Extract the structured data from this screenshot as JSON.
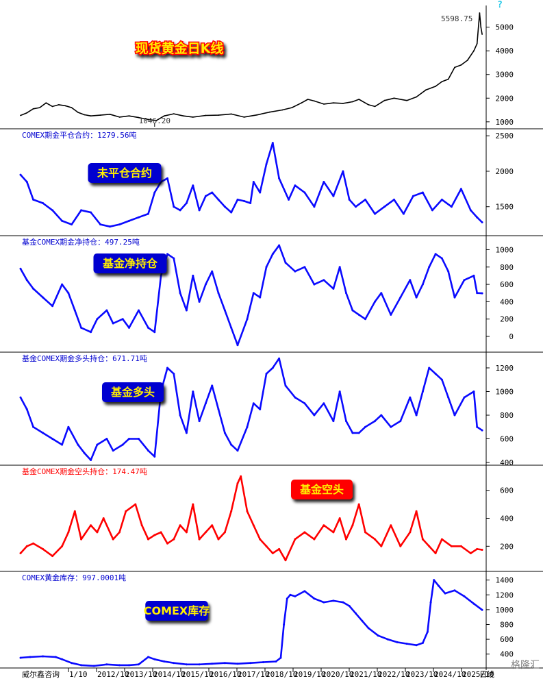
{
  "colors": {
    "black": "#000000",
    "blue": "#0a0aff",
    "red": "#ff0000",
    "yellow": "#ffee00",
    "label_red": "#ff0000",
    "label_blue": "#0000d0",
    "cyan": "#22c8e8"
  },
  "top_right_mark": "?",
  "footer": {
    "source": "威尔鑫咨询",
    "ticks": [
      "1/10",
      "2012/10",
      "2013/10",
      "2014/10",
      "2015/10",
      "2016/10",
      "2017/10",
      "2018/10",
      "2019/10",
      "2020/10",
      "2021/10",
      "2022/10",
      "2023/10",
      "2024/10",
      "2025/10"
    ],
    "period": "日线",
    "watermark": "格隆汇"
  },
  "chart_data": [
    {
      "id": "gold",
      "type": "line",
      "color": "black",
      "header": "",
      "big_label": "现货黄金日K线",
      "big_label_style": "red-on-yellow",
      "ylim": [
        850,
        5800
      ],
      "yticks": [
        1000,
        2000,
        3000,
        4000,
        5000
      ],
      "annotations": [
        {
          "text": "5598.75",
          "x": 2026.08,
          "y": 5598.75
        },
        {
          "text": "1046.20",
          "x": 2015.9,
          "y": 1046.2
        }
      ],
      "x": [
        2011.7,
        2011.9,
        2012.1,
        2012.3,
        2012.5,
        2012.7,
        2012.9,
        2013.1,
        2013.3,
        2013.5,
        2013.7,
        2013.9,
        2014.2,
        2014.5,
        2014.8,
        2015.1,
        2015.4,
        2015.7,
        2015.95,
        2016.2,
        2016.5,
        2016.8,
        2017.1,
        2017.5,
        2017.9,
        2018.3,
        2018.7,
        2019.1,
        2019.5,
        2019.9,
        2020.2,
        2020.5,
        2020.7,
        2020.9,
        2021.2,
        2021.5,
        2021.8,
        2022.1,
        2022.3,
        2022.6,
        2022.8,
        2023.1,
        2023.4,
        2023.8,
        2024.1,
        2024.4,
        2024.7,
        2024.9,
        2025.1,
        2025.3,
        2025.5,
        2025.7,
        2025.9,
        2026.0,
        2026.08,
        2026.12,
        2026.16
      ],
      "y": [
        1270,
        1380,
        1550,
        1600,
        1800,
        1650,
        1720,
        1680,
        1600,
        1400,
        1300,
        1250,
        1280,
        1320,
        1200,
        1250,
        1180,
        1100,
        1050,
        1250,
        1340,
        1250,
        1200,
        1270,
        1280,
        1330,
        1200,
        1290,
        1410,
        1500,
        1600,
        1800,
        1950,
        1880,
        1750,
        1800,
        1780,
        1850,
        1950,
        1720,
        1650,
        1900,
        2000,
        1900,
        2050,
        2350,
        2500,
        2700,
        2800,
        3300,
        3400,
        3600,
        4000,
        4300,
        5598.75,
        5000,
        4700
      ]
    },
    {
      "id": "open-interest",
      "type": "line",
      "color": "blue",
      "header": "COMEX期金平仓合约：1279.56吨",
      "header_color": "label_blue",
      "big_label": "未平仓合约",
      "big_label_style": "yellow-on-blue",
      "ylim": [
        1130,
        2560
      ],
      "yticks": [
        1500,
        2000,
        2500
      ],
      "x": [
        2011.7,
        2011.9,
        2012.1,
        2012.4,
        2012.7,
        2013.0,
        2013.3,
        2013.6,
        2013.9,
        2014.2,
        2014.5,
        2014.8,
        2015.1,
        2015.4,
        2015.7,
        2015.9,
        2016.1,
        2016.3,
        2016.5,
        2016.7,
        2016.9,
        2017.1,
        2017.3,
        2017.5,
        2017.7,
        2017.9,
        2018.1,
        2018.3,
        2018.5,
        2018.7,
        2018.9,
        2019.0,
        2019.2,
        2019.4,
        2019.6,
        2019.8,
        2020.1,
        2020.3,
        2020.6,
        2020.9,
        2021.2,
        2021.5,
        2021.8,
        2022.0,
        2022.2,
        2022.5,
        2022.8,
        2023.1,
        2023.4,
        2023.7,
        2024.0,
        2024.3,
        2024.6,
        2024.9,
        2025.2,
        2025.5,
        2025.8,
        2026.0,
        2026.16
      ],
      "y": [
        1950,
        1850,
        1600,
        1550,
        1450,
        1300,
        1250,
        1450,
        1420,
        1250,
        1220,
        1250,
        1300,
        1350,
        1400,
        1700,
        1850,
        1900,
        1500,
        1450,
        1550,
        1800,
        1450,
        1650,
        1700,
        1600,
        1500,
        1420,
        1600,
        1580,
        1550,
        1850,
        1700,
        2100,
        2400,
        1900,
        1600,
        1800,
        1700,
        1500,
        1850,
        1650,
        2000,
        1600,
        1500,
        1600,
        1400,
        1500,
        1600,
        1400,
        1650,
        1700,
        1450,
        1600,
        1500,
        1750,
        1450,
        1350,
        1279.56
      ]
    },
    {
      "id": "fund-net",
      "type": "line",
      "color": "blue",
      "header": "基金COMEX期金净持仓：497.25吨",
      "header_color": "label_blue",
      "big_label": "基金净持仓",
      "big_label_style": "yellow-on-blue",
      "ylim": [
        -150,
        1130
      ],
      "yticks": [
        0,
        200,
        400,
        600,
        800,
        1000
      ],
      "x": [
        2011.7,
        2011.9,
        2012.1,
        2012.4,
        2012.7,
        2013.0,
        2013.2,
        2013.4,
        2013.6,
        2013.9,
        2014.1,
        2014.4,
        2014.6,
        2014.9,
        2015.1,
        2015.4,
        2015.7,
        2015.9,
        2016.1,
        2016.3,
        2016.5,
        2016.7,
        2016.9,
        2017.1,
        2017.3,
        2017.5,
        2017.7,
        2017.9,
        2018.1,
        2018.3,
        2018.5,
        2018.8,
        2019.0,
        2019.2,
        2019.4,
        2019.6,
        2019.8,
        2020.0,
        2020.3,
        2020.6,
        2020.9,
        2021.2,
        2021.5,
        2021.7,
        2021.9,
        2022.1,
        2022.3,
        2022.5,
        2022.8,
        2023.0,
        2023.3,
        2023.6,
        2023.9,
        2024.1,
        2024.3,
        2024.5,
        2024.7,
        2024.9,
        2025.1,
        2025.3,
        2025.6,
        2025.9,
        2026.0,
        2026.16
      ],
      "y": [
        780,
        650,
        550,
        450,
        350,
        600,
        500,
        300,
        100,
        50,
        200,
        300,
        150,
        200,
        100,
        300,
        100,
        50,
        700,
        950,
        900,
        500,
        300,
        700,
        400,
        600,
        750,
        500,
        300,
        100,
        -100,
        200,
        500,
        450,
        800,
        950,
        1050,
        850,
        750,
        800,
        600,
        650,
        550,
        800,
        500,
        300,
        250,
        200,
        400,
        500,
        250,
        450,
        650,
        450,
        600,
        800,
        950,
        900,
        750,
        450,
        650,
        700,
        500,
        497.25
      ]
    },
    {
      "id": "fund-long",
      "type": "line",
      "color": "blue",
      "header": "基金COMEX期金多头持仓：671.71吨",
      "header_color": "label_blue",
      "big_label": "基金多头",
      "big_label_style": "yellow-on-blue",
      "ylim": [
        400,
        1310
      ],
      "yticks": [
        400,
        600,
        800,
        1000,
        1200
      ],
      "x": [
        2011.7,
        2011.9,
        2012.1,
        2012.4,
        2012.7,
        2013.0,
        2013.2,
        2013.5,
        2013.7,
        2013.9,
        2014.1,
        2014.4,
        2014.6,
        2014.9,
        2015.1,
        2015.4,
        2015.7,
        2015.9,
        2016.1,
        2016.3,
        2016.5,
        2016.7,
        2016.9,
        2017.1,
        2017.3,
        2017.5,
        2017.7,
        2017.9,
        2018.1,
        2018.3,
        2018.5,
        2018.8,
        2019.0,
        2019.2,
        2019.4,
        2019.6,
        2019.8,
        2020.0,
        2020.3,
        2020.6,
        2020.9,
        2021.2,
        2021.5,
        2021.7,
        2021.9,
        2022.1,
        2022.3,
        2022.5,
        2022.8,
        2023.0,
        2023.3,
        2023.6,
        2023.9,
        2024.1,
        2024.3,
        2024.5,
        2024.7,
        2024.9,
        2025.1,
        2025.3,
        2025.6,
        2025.9,
        2026.0,
        2026.16
      ],
      "y": [
        950,
        850,
        700,
        650,
        600,
        550,
        700,
        550,
        480,
        420,
        550,
        600,
        500,
        550,
        600,
        600,
        500,
        450,
        1000,
        1200,
        1150,
        800,
        650,
        1000,
        750,
        900,
        1050,
        850,
        650,
        550,
        500,
        700,
        900,
        850,
        1150,
        1200,
        1280,
        1050,
        950,
        900,
        800,
        900,
        750,
        1000,
        750,
        650,
        650,
        700,
        750,
        800,
        700,
        750,
        950,
        800,
        1000,
        1200,
        1150,
        1100,
        950,
        800,
        950,
        1000,
        700,
        671.71
      ]
    },
    {
      "id": "fund-short",
      "type": "line",
      "color": "red",
      "header": "基金COMEX期金空头持仓：174.47吨",
      "header_color": "label_red",
      "big_label": "基金空头",
      "big_label_style": "yellow-on-red",
      "ylim": [
        40,
        760
      ],
      "yticks": [
        200,
        400,
        600
      ],
      "x": [
        2011.7,
        2011.9,
        2012.1,
        2012.4,
        2012.7,
        2013.0,
        2013.2,
        2013.4,
        2013.6,
        2013.9,
        2014.1,
        2014.3,
        2014.6,
        2014.8,
        2015.0,
        2015.3,
        2015.5,
        2015.7,
        2015.9,
        2016.1,
        2016.3,
        2016.5,
        2016.7,
        2016.9,
        2017.1,
        2017.3,
        2017.5,
        2017.7,
        2017.9,
        2018.1,
        2018.3,
        2018.5,
        2018.6,
        2018.8,
        2019.0,
        2019.2,
        2019.4,
        2019.6,
        2019.8,
        2020.0,
        2020.3,
        2020.6,
        2020.9,
        2021.2,
        2021.5,
        2021.7,
        2021.9,
        2022.1,
        2022.3,
        2022.5,
        2022.8,
        2023.0,
        2023.3,
        2023.6,
        2023.9,
        2024.1,
        2024.3,
        2024.5,
        2024.7,
        2024.9,
        2025.2,
        2025.5,
        2025.8,
        2026.0,
        2026.16
      ],
      "y": [
        150,
        200,
        220,
        180,
        130,
        200,
        300,
        450,
        250,
        350,
        300,
        400,
        250,
        300,
        450,
        500,
        350,
        250,
        280,
        300,
        220,
        250,
        350,
        300,
        500,
        250,
        300,
        350,
        250,
        300,
        450,
        650,
        700,
        450,
        350,
        250,
        200,
        150,
        180,
        100,
        250,
        300,
        250,
        350,
        300,
        400,
        250,
        350,
        500,
        300,
        250,
        200,
        350,
        200,
        300,
        450,
        250,
        200,
        150,
        250,
        200,
        200,
        150,
        180,
        174.47
      ]
    },
    {
      "id": "comex-stock",
      "type": "line",
      "color": "blue",
      "header": "COMEX黄金库存：997.0001吨",
      "header_color": "label_blue",
      "big_label": "COMEX库存",
      "big_label_style": "yellow-on-blue",
      "ylim": [
        240,
        1480
      ],
      "yticks": [
        400,
        600,
        800,
        1000,
        1200,
        1400
      ],
      "x": [
        2011.7,
        2012.0,
        2012.4,
        2012.8,
        2013.0,
        2013.3,
        2013.6,
        2014.0,
        2014.4,
        2014.8,
        2015.1,
        2015.4,
        2015.7,
        2015.9,
        2016.2,
        2016.5,
        2016.9,
        2017.3,
        2017.7,
        2018.1,
        2018.5,
        2018.9,
        2019.3,
        2019.7,
        2019.85,
        2019.95,
        2020.05,
        2020.15,
        2020.3,
        2020.6,
        2020.9,
        2021.2,
        2021.5,
        2021.8,
        2022.0,
        2022.2,
        2022.4,
        2022.6,
        2022.9,
        2023.2,
        2023.5,
        2023.8,
        2024.1,
        2024.3,
        2024.45,
        2024.55,
        2024.65,
        2024.8,
        2025.0,
        2025.3,
        2025.6,
        2025.9,
        2026.16
      ],
      "y": [
        350,
        360,
        370,
        360,
        330,
        280,
        250,
        240,
        260,
        250,
        250,
        260,
        360,
        330,
        300,
        280,
        260,
        260,
        270,
        280,
        270,
        280,
        290,
        300,
        350,
        800,
        1150,
        1200,
        1180,
        1250,
        1150,
        1100,
        1120,
        1100,
        1050,
        950,
        850,
        750,
        650,
        600,
        560,
        540,
        520,
        550,
        700,
        1100,
        1400,
        1320,
        1220,
        1260,
        1180,
        1080,
        997
      ]
    }
  ]
}
